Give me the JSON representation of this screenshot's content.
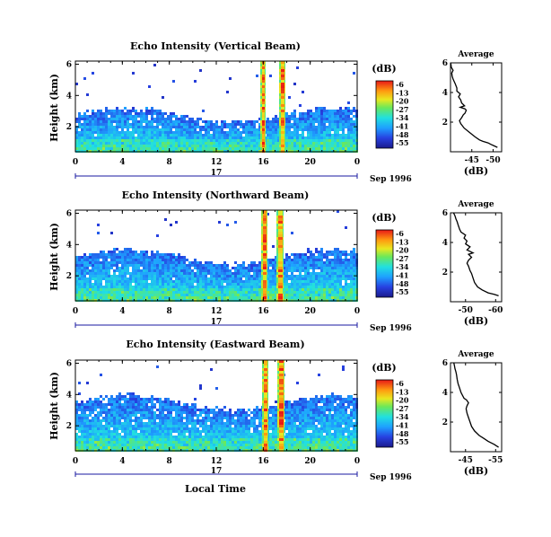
{
  "chart_data": [
    {
      "type": "heatmap",
      "title": "Echo Intensity (Vertical Beam)",
      "ylabel": "Height (km)",
      "xlabel": "",
      "x_ticks": [
        "0",
        "4",
        "8",
        "12",
        "16",
        "20",
        "0"
      ],
      "y_ticks": [
        "6",
        "4",
        "2"
      ],
      "xlim": [
        0,
        24
      ],
      "ylim": [
        0.4,
        6.2
      ],
      "date_marker": "17",
      "date_label": "Sep 1996",
      "colorbar_label": "(dB)",
      "colorbar_ticks": [
        "-6",
        "-13",
        "-20",
        "-27",
        "-34",
        "-41",
        "-48",
        "-55"
      ],
      "inset": {
        "type": "line",
        "title": "Average",
        "xlabel": "(dB)",
        "x_ticks": [
          "-45",
          "-50"
        ],
        "y_ticks": [
          "6",
          "4",
          "2"
        ],
        "xlim": [
          -40,
          -52
        ],
        "ylim": [
          0,
          6
        ],
        "x": [
          -51.0,
          -50.2,
          -49.5,
          -48.8,
          -47.6,
          -46.8,
          -45.8,
          -44.5,
          -43.2,
          -42.4,
          -42.1,
          -42.6,
          -43.0,
          -43.4,
          -43.7,
          -43.4,
          -42.3,
          -43.3,
          -42.6,
          -42.4,
          -41.9,
          -42.3,
          -41.5,
          -41.5,
          -41.1,
          -40.6,
          -40.4,
          -40.3,
          -40.6,
          -40.2,
          -40.1,
          -40.0
        ],
        "y": [
          0.3,
          0.4,
          0.5,
          0.6,
          0.7,
          0.8,
          1.0,
          1.3,
          1.6,
          1.9,
          2.1,
          2.3,
          2.5,
          2.6,
          2.8,
          2.9,
          3.0,
          3.1,
          3.3,
          3.5,
          3.7,
          3.9,
          4.1,
          4.3,
          4.6,
          4.9,
          5.1,
          5.3,
          5.5,
          5.7,
          5.9,
          6.0
        ]
      }
    },
    {
      "type": "heatmap",
      "title": "Echo Intensity (Northward Beam)",
      "ylabel": "Height (km)",
      "xlabel": "",
      "x_ticks": [
        "0",
        "4",
        "8",
        "12",
        "16",
        "20",
        "0"
      ],
      "y_ticks": [
        "6",
        "4",
        "2"
      ],
      "xlim": [
        0,
        24
      ],
      "ylim": [
        0.4,
        6.2
      ],
      "date_marker": "17",
      "date_label": "Sep 1996",
      "colorbar_label": "(dB)",
      "colorbar_ticks": [
        "-6",
        "-13",
        "-20",
        "-27",
        "-34",
        "-41",
        "-48",
        "-55"
      ],
      "inset": {
        "type": "line",
        "title": "Average",
        "xlabel": "(dB)",
        "x_ticks": [
          "-50",
          "-60"
        ],
        "y_ticks": [
          "6",
          "4",
          "2"
        ],
        "xlim": [
          -45,
          -62
        ],
        "ylim": [
          0,
          6
        ],
        "x": [
          -61.0,
          -59.5,
          -57.5,
          -55.5,
          -54.0,
          -53.0,
          -52.5,
          -52.0,
          -51.5,
          -51.0,
          -50.5,
          -51.0,
          -52.0,
          -51.0,
          -52.5,
          -50.5,
          -51.5,
          -50.0,
          -50.5,
          -49.5,
          -50.0,
          -48.5,
          -48.0,
          -47.5,
          -47.2,
          -46.8,
          -46.5,
          -46.0
        ],
        "y": [
          0.4,
          0.5,
          0.6,
          0.8,
          1.0,
          1.3,
          1.6,
          1.9,
          2.1,
          2.4,
          2.6,
          2.8,
          3.0,
          3.2,
          3.3,
          3.5,
          3.7,
          3.9,
          4.1,
          4.3,
          4.5,
          4.7,
          4.9,
          5.2,
          5.4,
          5.6,
          5.8,
          6.0
        ]
      }
    },
    {
      "type": "heatmap",
      "title": "Echo Intensity (Eastward Beam)",
      "ylabel": "Height (km)",
      "xlabel": "Local Time",
      "x_ticks": [
        "0",
        "4",
        "8",
        "12",
        "16",
        "20",
        "0"
      ],
      "y_ticks": [
        "6",
        "4",
        "2"
      ],
      "xlim": [
        0,
        24
      ],
      "ylim": [
        0.4,
        6.2
      ],
      "date_marker": "17",
      "date_label": "Sep 1996",
      "colorbar_label": "(dB)",
      "colorbar_ticks": [
        "-6",
        "-13",
        "-20",
        "-27",
        "-34",
        "-41",
        "-48",
        "-55"
      ],
      "inset": {
        "type": "line",
        "title": "Average",
        "xlabel": "(dB)",
        "x_ticks": [
          "-45",
          "-55"
        ],
        "y_ticks": [
          "6",
          "4",
          "2"
        ],
        "xlim": [
          -40,
          -57
        ],
        "ylim": [
          0,
          6
        ],
        "x": [
          -56.0,
          -54.5,
          -52.5,
          -51.0,
          -49.5,
          -48.0,
          -47.0,
          -46.5,
          -46.0,
          -45.5,
          -45.2,
          -45.5,
          -46.0,
          -45.3,
          -44.5,
          -44.0,
          -43.5,
          -43.0,
          -42.5,
          -42.2,
          -42.0,
          -41.8,
          -41.5,
          -41.3,
          -41.1
        ],
        "y": [
          0.3,
          0.5,
          0.7,
          0.9,
          1.1,
          1.4,
          1.7,
          2.0,
          2.3,
          2.6,
          2.9,
          3.1,
          3.3,
          3.5,
          3.6,
          3.8,
          4.0,
          4.3,
          4.6,
          4.9,
          5.2,
          5.4,
          5.6,
          5.8,
          6.0
        ]
      }
    }
  ]
}
